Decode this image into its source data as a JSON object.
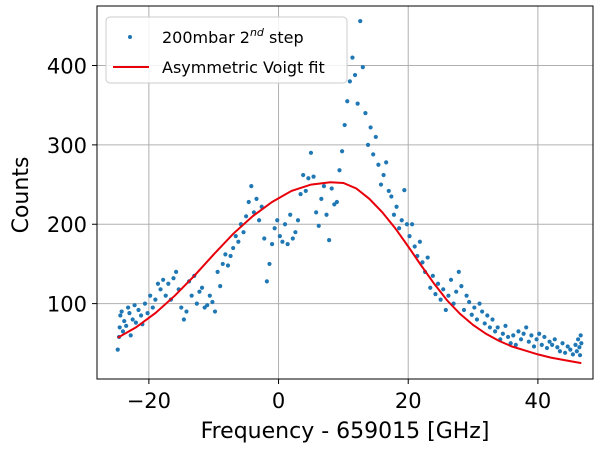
{
  "chart_data": {
    "type": "scatter",
    "xlabel": "Frequency - 659015 [GHz]",
    "ylabel": "Counts",
    "xlim": [
      -28,
      48.5
    ],
    "ylim": [
      5,
      475
    ],
    "xticks": [
      -20,
      0,
      20,
      40
    ],
    "yticks": [
      100,
      200,
      300,
      400
    ],
    "xtick_labels": [
      "−20",
      "0",
      "20",
      "40"
    ],
    "ytick_labels": [
      "100",
      "200",
      "300",
      "400"
    ],
    "grid": true,
    "legend_position": "top-left",
    "legend": {
      "scatter_prefix": "200mbar 2",
      "scatter_superscript": "nd",
      "scatter_suffix": " step",
      "fit_label": "Asymmetric Voigt fit"
    },
    "colors": {
      "data": "#1f77b4",
      "fit": "#e8000b",
      "grid": "#b0b0b0"
    },
    "series": [
      {
        "kind": "scatter",
        "points": [
          [
            -24.8,
            42
          ],
          [
            -24.6,
            58
          ],
          [
            -24.5,
            70
          ],
          [
            -24.4,
            85
          ],
          [
            -24.2,
            90
          ],
          [
            -24.0,
            65
          ],
          [
            -23.8,
            78
          ],
          [
            -23.5,
            72
          ],
          [
            -23.2,
            95
          ],
          [
            -23.0,
            88
          ],
          [
            -22.8,
            60
          ],
          [
            -22.5,
            80
          ],
          [
            -22.2,
            98
          ],
          [
            -22.0,
            76
          ],
          [
            -21.6,
            92
          ],
          [
            -21.2,
            85
          ],
          [
            -21.0,
            74
          ],
          [
            -20.6,
            100
          ],
          [
            -20.2,
            88
          ],
          [
            -19.8,
            110
          ],
          [
            -19.4,
            95
          ],
          [
            -19.0,
            105
          ],
          [
            -18.6,
            125
          ],
          [
            -18.2,
            118
          ],
          [
            -17.8,
            130
          ],
          [
            -17.4,
            110
          ],
          [
            -17.0,
            125
          ],
          [
            -16.6,
            105
          ],
          [
            -16.2,
            132
          ],
          [
            -15.8,
            140
          ],
          [
            -15.4,
            118
          ],
          [
            -15.0,
            95
          ],
          [
            -14.6,
            80
          ],
          [
            -14.2,
            90
          ],
          [
            -13.8,
            128
          ],
          [
            -13.4,
            110
          ],
          [
            -13.0,
            135
          ],
          [
            -12.6,
            100
          ],
          [
            -12.2,
            115
          ],
          [
            -11.8,
            120
          ],
          [
            -11.4,
            95
          ],
          [
            -11.0,
            98
          ],
          [
            -10.6,
            110
          ],
          [
            -10.2,
            102
          ],
          [
            -9.8,
            90
          ],
          [
            -9.4,
            140
          ],
          [
            -9.0,
            122
          ],
          [
            -8.6,
            150
          ],
          [
            -8.2,
            162
          ],
          [
            -7.8,
            148
          ],
          [
            -7.4,
            160
          ],
          [
            -7.0,
            170
          ],
          [
            -6.6,
            185
          ],
          [
            -6.2,
            178
          ],
          [
            -5.8,
            200
          ],
          [
            -5.4,
            190
          ],
          [
            -5.0,
            210
          ],
          [
            -4.6,
            228
          ],
          [
            -4.2,
            248
          ],
          [
            -3.8,
            215
          ],
          [
            -3.4,
            232
          ],
          [
            -3.0,
            205
          ],
          [
            -2.6,
            222
          ],
          [
            -2.2,
            182
          ],
          [
            -1.8,
            128
          ],
          [
            -1.4,
            150
          ],
          [
            -1.0,
            175
          ],
          [
            -0.6,
            195
          ],
          [
            -0.2,
            205
          ],
          [
            0.2,
            185
          ],
          [
            0.6,
            178
          ],
          [
            1.0,
            200
          ],
          [
            1.4,
            175
          ],
          [
            1.8,
            212
          ],
          [
            2.2,
            182
          ],
          [
            2.6,
            190
          ],
          [
            3.0,
            205
          ],
          [
            3.4,
            238
          ],
          [
            3.8,
            262
          ],
          [
            4.2,
            242
          ],
          [
            4.6,
            258
          ],
          [
            5.0,
            290
          ],
          [
            5.4,
            260
          ],
          [
            5.8,
            215
          ],
          [
            6.2,
            198
          ],
          [
            6.6,
            232
          ],
          [
            7.0,
            248
          ],
          [
            7.4,
            212
          ],
          [
            7.8,
            180
          ],
          [
            8.2,
            245
          ],
          [
            8.6,
            225
          ],
          [
            9.0,
            228
          ],
          [
            9.4,
            268
          ],
          [
            9.8,
            292
          ],
          [
            10.2,
            325
          ],
          [
            10.6,
            355
          ],
          [
            11.0,
            380
          ],
          [
            11.4,
            410
          ],
          [
            11.8,
            388
          ],
          [
            12.2,
            352
          ],
          [
            12.6,
            456
          ],
          [
            13.0,
            398
          ],
          [
            13.4,
            340
          ],
          [
            13.8,
            300
          ],
          [
            14.2,
            322
          ],
          [
            14.6,
            288
          ],
          [
            15.0,
            310
          ],
          [
            15.4,
            275
          ],
          [
            15.8,
            250
          ],
          [
            16.2,
            262
          ],
          [
            16.6,
            278
          ],
          [
            17.0,
            242
          ],
          [
            17.4,
            235
          ],
          [
            17.8,
            212
          ],
          [
            18.2,
            222
          ],
          [
            18.6,
            195
          ],
          [
            19.0,
            205
          ],
          [
            19.4,
            243
          ],
          [
            19.8,
            200
          ],
          [
            20.2,
            185
          ],
          [
            20.6,
            200
          ],
          [
            21.0,
            172
          ],
          [
            21.4,
            160
          ],
          [
            21.8,
            178
          ],
          [
            22.2,
            152
          ],
          [
            22.6,
            140
          ],
          [
            23.0,
            158
          ],
          [
            23.4,
            120
          ],
          [
            23.8,
            135
          ],
          [
            24.2,
            112
          ],
          [
            24.6,
            125
          ],
          [
            25.0,
            105
          ],
          [
            25.4,
            118
          ],
          [
            25.8,
            92
          ],
          [
            26.2,
            110
          ],
          [
            26.6,
            130
          ],
          [
            27.0,
            100
          ],
          [
            27.4,
            115
          ],
          [
            27.8,
            140
          ],
          [
            28.2,
            122
          ],
          [
            28.6,
            92
          ],
          [
            29.0,
            110
          ],
          [
            29.4,
            102
          ],
          [
            29.8,
            86
          ],
          [
            30.2,
            95
          ],
          [
            30.6,
            80
          ],
          [
            31.0,
            100
          ],
          [
            31.4,
            90
          ],
          [
            31.8,
            75
          ],
          [
            32.2,
            85
          ],
          [
            32.6,
            70
          ],
          [
            33.0,
            80
          ],
          [
            33.4,
            65
          ],
          [
            33.8,
            70
          ],
          [
            34.2,
            55
          ],
          [
            34.6,
            62
          ],
          [
            35.0,
            72
          ],
          [
            35.4,
            58
          ],
          [
            35.8,
            50
          ],
          [
            36.2,
            60
          ],
          [
            36.6,
            48
          ],
          [
            37.0,
            65
          ],
          [
            37.4,
            55
          ],
          [
            37.8,
            62
          ],
          [
            38.2,
            70
          ],
          [
            38.6,
            52
          ],
          [
            39.0,
            60
          ],
          [
            39.4,
            46
          ],
          [
            39.8,
            55
          ],
          [
            40.2,
            62
          ],
          [
            40.6,
            48
          ],
          [
            41.0,
            58
          ],
          [
            41.4,
            44
          ],
          [
            41.8,
            52
          ],
          [
            42.2,
            48
          ],
          [
            42.6,
            55
          ],
          [
            43.0,
            45
          ],
          [
            43.4,
            40
          ],
          [
            43.8,
            50
          ],
          [
            44.2,
            38
          ],
          [
            44.6,
            46
          ],
          [
            45.0,
            42
          ],
          [
            45.4,
            36
          ],
          [
            45.8,
            48
          ],
          [
            46.0,
            40
          ],
          [
            46.2,
            55
          ],
          [
            46.4,
            45
          ],
          [
            46.5,
            35
          ],
          [
            46.6,
            60
          ],
          [
            46.7,
            50
          ]
        ]
      },
      {
        "kind": "line",
        "points": [
          [
            -24.8,
            57
          ],
          [
            -22,
            70
          ],
          [
            -19,
            88
          ],
          [
            -16,
            110
          ],
          [
            -13,
            135
          ],
          [
            -10,
            162
          ],
          [
            -7,
            188
          ],
          [
            -4,
            210
          ],
          [
            -1,
            228
          ],
          [
            2,
            242
          ],
          [
            5,
            250
          ],
          [
            8,
            253
          ],
          [
            10,
            252
          ],
          [
            12,
            245
          ],
          [
            14,
            232
          ],
          [
            16,
            215
          ],
          [
            18,
            195
          ],
          [
            20,
            172
          ],
          [
            22,
            148
          ],
          [
            24,
            125
          ],
          [
            26,
            104
          ],
          [
            28,
            87
          ],
          [
            30,
            73
          ],
          [
            32,
            62
          ],
          [
            34,
            53
          ],
          [
            36,
            46
          ],
          [
            38,
            41
          ],
          [
            40,
            36
          ],
          [
            42,
            32
          ],
          [
            44,
            29
          ],
          [
            46.7,
            25
          ]
        ]
      }
    ]
  }
}
